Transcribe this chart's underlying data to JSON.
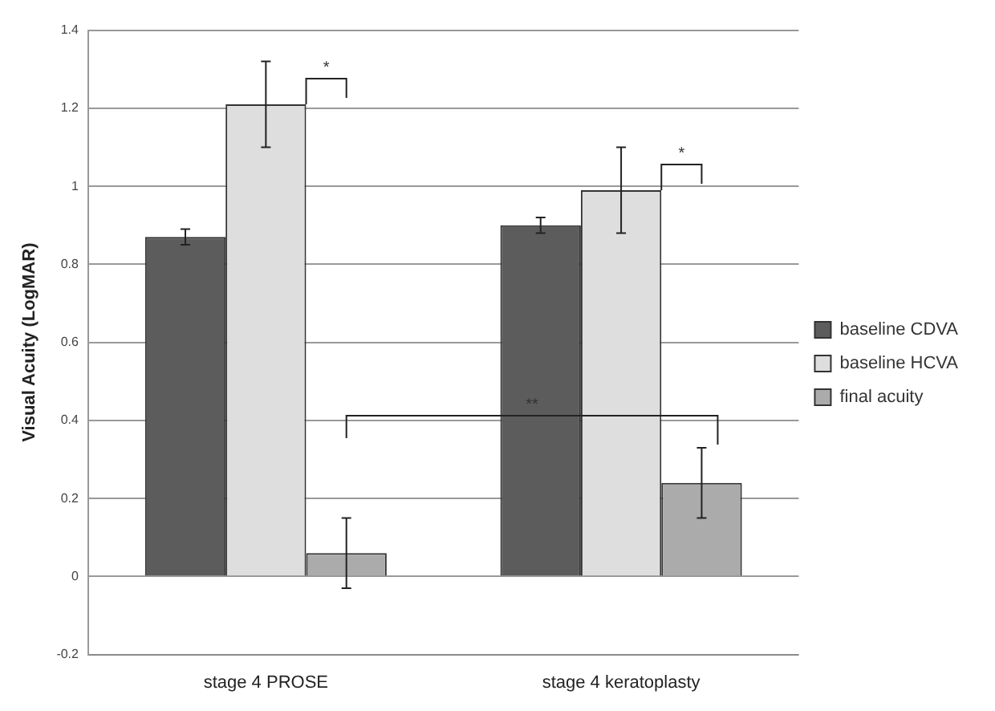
{
  "chart_data": {
    "type": "bar",
    "ylabel": "Visual Acuity (LogMAR)",
    "categories": [
      "stage 4 PROSE",
      "stage 4 keratoplasty"
    ],
    "series": [
      {
        "name": "baseline CDVA",
        "color": "#5c5c5c",
        "values": [
          0.87,
          0.9
        ],
        "errors": [
          0.02,
          0.02
        ]
      },
      {
        "name": "baseline HCVA",
        "color": "#dedede",
        "values": [
          1.21,
          0.99
        ],
        "errors": [
          [
            1.1,
            1.32
          ],
          [
            0.88,
            1.1
          ]
        ]
      },
      {
        "name": "final acuity",
        "color": "#ababab",
        "values": [
          0.06,
          0.24
        ],
        "errors": [
          [
            -0.03,
            0.15
          ],
          [
            0.15,
            0.33
          ]
        ]
      }
    ],
    "ylim": [
      -0.2,
      1.4
    ],
    "yticks": [
      -0.2,
      0,
      0.2,
      0.4,
      0.6,
      0.8,
      1,
      1.2,
      1.4
    ],
    "grid": "y",
    "legend": "right",
    "annotations": [
      "*",
      "*",
      "**"
    ]
  }
}
